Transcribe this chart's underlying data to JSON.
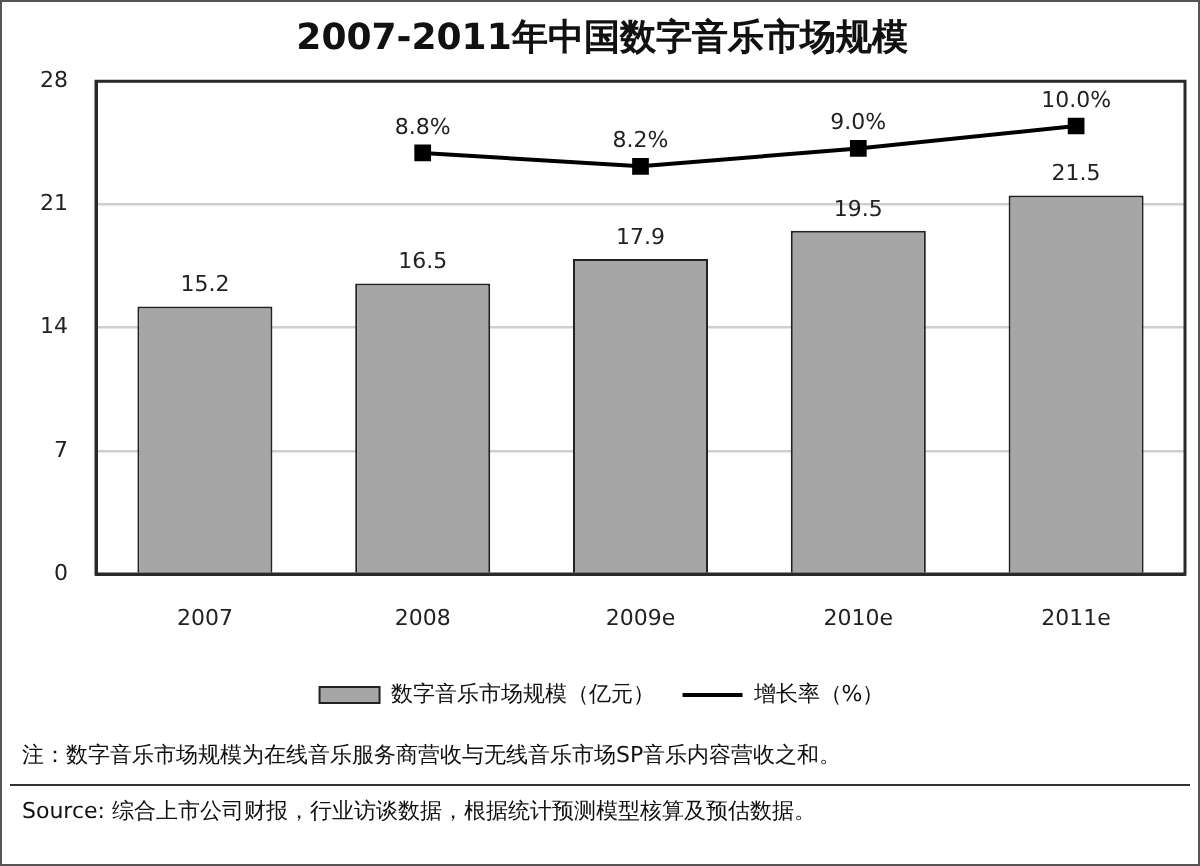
{
  "chart_data": {
    "type": "bar",
    "title": "2007-2011年中国数字音乐市场规模",
    "categories": [
      "2007",
      "2008",
      "2009e",
      "2010e",
      "2011e"
    ],
    "series": [
      {
        "name": "数字音乐市场规模（亿元）",
        "color": "#a6a6a6",
        "values": [
          15.2,
          16.5,
          17.9,
          19.5,
          21.5
        ],
        "value_labels": [
          "15.2",
          "16.5",
          "17.9",
          "19.5",
          "21.5"
        ]
      },
      {
        "name": "增长率（%）",
        "type": "line",
        "axis": "y2",
        "color": "#000000",
        "values": [
          null,
          8.8,
          8.2,
          9.0,
          10.0
        ],
        "value_labels": [
          null,
          "8.8%",
          "8.2%",
          "9.0%",
          "10.0%"
        ]
      }
    ],
    "ylim": [
      0,
      28
    ],
    "yticks": [
      0,
      7,
      14,
      21,
      28
    ],
    "y2lim": [
      -10,
      12
    ],
    "grid": "y",
    "legend": "bottom",
    "marker": "square",
    "line_style": "solid",
    "annotations": [
      "注：数字音乐市场规模为在线音乐服务商营收与无线音乐市场SP音乐内容营收之和。",
      "Source: 综合上市公司财报，行业访谈数据，根据统计预测模型核算及预估数据。"
    ]
  }
}
